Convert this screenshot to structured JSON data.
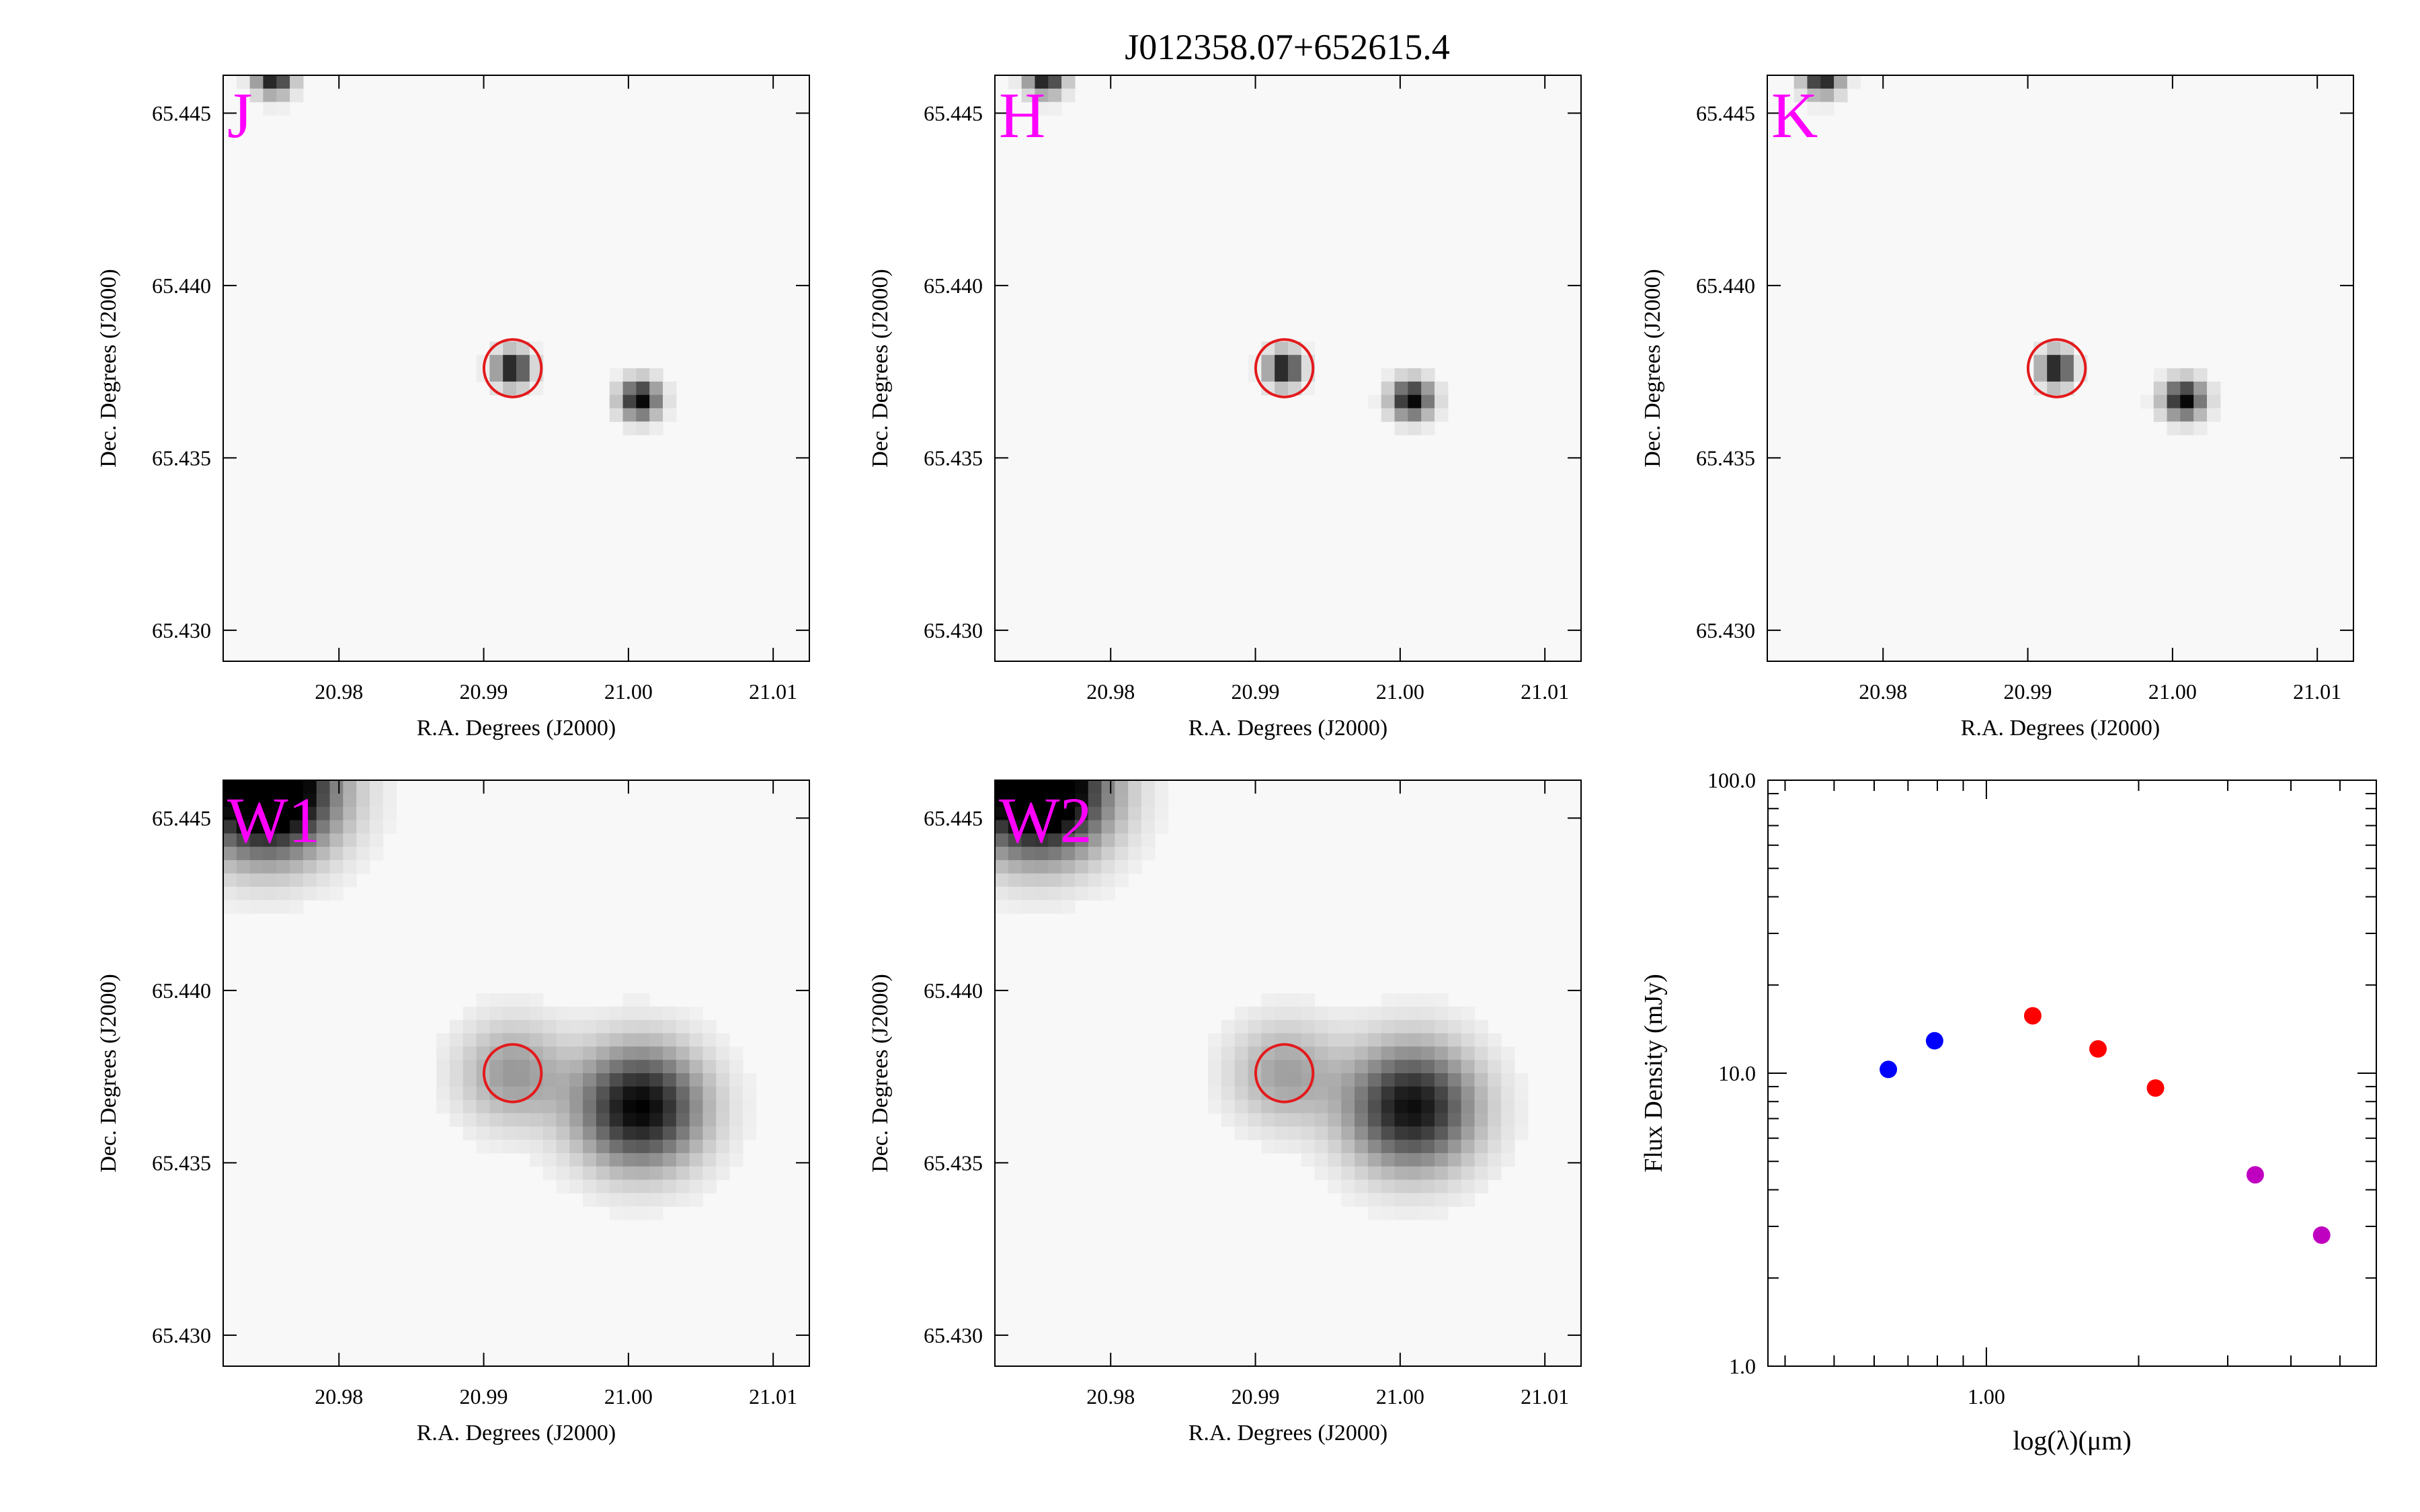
{
  "figure_title": "J012358.07+652615.4",
  "colors": {
    "band_label": "#ff00ff",
    "aperture": "#e31a1c",
    "optical": "#0000ff",
    "near_ir": "#ff0000",
    "mid_ir": "#c000c0"
  },
  "chart_data": [
    {
      "type": "heatmap",
      "band": "J",
      "xlabel": "R.A. Degrees (J2000)",
      "ylabel": "Dec. Degrees (J2000)",
      "xlim": [
        20.972,
        21.0125
      ],
      "ylim": [
        65.4291,
        65.4461
      ],
      "xticks": [
        20.98,
        20.99,
        21.0,
        21.01
      ],
      "xtick_labels": [
        "20.98",
        "20.99",
        "21.00",
        "21.01"
      ],
      "yticks": [
        65.43,
        65.435,
        65.44,
        65.445
      ],
      "ytick_labels": [
        "65.430",
        "65.435",
        "65.440",
        "65.445"
      ],
      "sources": [
        {
          "ra": 20.9755,
          "dec": 65.4461,
          "peak": 1.0,
          "fwhm_ra": 0.0021,
          "fwhm_dec": 0.0009
        },
        {
          "ra": 20.992,
          "dec": 65.4376,
          "peak": 1.0,
          "fwhm_ra": 0.002,
          "fwhm_dec": 0.0008
        },
        {
          "ra": 21.0008,
          "dec": 65.4367,
          "peak": 1.0,
          "fwhm_ra": 0.0022,
          "fwhm_dec": 0.0009
        }
      ],
      "aperture": {
        "ra": 20.992,
        "dec": 65.4376,
        "radius_arcsec": 3
      }
    },
    {
      "type": "heatmap",
      "band": "H",
      "xlabel": "R.A. Degrees (J2000)",
      "ylabel": "Dec. Degrees (J2000)",
      "xlim": [
        20.972,
        21.0125
      ],
      "ylim": [
        65.4291,
        65.4461
      ],
      "xticks": [
        20.98,
        20.99,
        21.0,
        21.01
      ],
      "xtick_labels": [
        "20.98",
        "20.99",
        "21.00",
        "21.01"
      ],
      "yticks": [
        65.43,
        65.435,
        65.44,
        65.445
      ],
      "ytick_labels": [
        "65.430",
        "65.435",
        "65.440",
        "65.445"
      ],
      "sources": [
        {
          "ra": 20.9755,
          "dec": 65.4461,
          "peak": 1.0,
          "fwhm_ra": 0.0021,
          "fwhm_dec": 0.0009
        },
        {
          "ra": 20.992,
          "dec": 65.4376,
          "peak": 1.0,
          "fwhm_ra": 0.0019,
          "fwhm_dec": 0.0008
        },
        {
          "ra": 21.0008,
          "dec": 65.4367,
          "peak": 1.0,
          "fwhm_ra": 0.0023,
          "fwhm_dec": 0.0009
        }
      ],
      "aperture": {
        "ra": 20.992,
        "dec": 65.4376,
        "radius_arcsec": 3
      }
    },
    {
      "type": "heatmap",
      "band": "K",
      "xlabel": "R.A. Degrees (J2000)",
      "ylabel": "Dec. Degrees (J2000)",
      "xlim": [
        20.972,
        21.0125
      ],
      "ylim": [
        65.4291,
        65.4461
      ],
      "xticks": [
        20.98,
        20.99,
        21.0,
        21.01
      ],
      "xtick_labels": [
        "20.98",
        "20.99",
        "21.00",
        "21.01"
      ],
      "yticks": [
        65.43,
        65.435,
        65.44,
        65.445
      ],
      "ytick_labels": [
        "65.430",
        "65.435",
        "65.440",
        "65.445"
      ],
      "sources": [
        {
          "ra": 20.9758,
          "dec": 65.4461,
          "peak": 1.0,
          "fwhm_ra": 0.0021,
          "fwhm_dec": 0.0009
        },
        {
          "ra": 20.992,
          "dec": 65.4376,
          "peak": 1.0,
          "fwhm_ra": 0.0018,
          "fwhm_dec": 0.0008
        },
        {
          "ra": 21.0008,
          "dec": 65.4367,
          "peak": 1.0,
          "fwhm_ra": 0.0023,
          "fwhm_dec": 0.0009
        }
      ],
      "aperture": {
        "ra": 20.992,
        "dec": 65.4376,
        "radius_arcsec": 3
      }
    },
    {
      "type": "heatmap",
      "band": "W1",
      "xlabel": "R.A. Degrees (J2000)",
      "ylabel": "Dec. Degrees (J2000)",
      "xlim": [
        20.972,
        21.0125
      ],
      "ylim": [
        65.4291,
        65.4461
      ],
      "xticks": [
        20.98,
        20.99,
        21.0,
        21.01
      ],
      "xtick_labels": [
        "20.98",
        "20.99",
        "21.00",
        "21.01"
      ],
      "yticks": [
        65.43,
        65.435,
        65.44,
        65.445
      ],
      "ytick_labels": [
        "65.430",
        "65.435",
        "65.440",
        "65.445"
      ],
      "sources": [
        {
          "ra": 20.975,
          "dec": 65.4458,
          "peak": 1.5,
          "fwhm_ra": 0.0075,
          "fwhm_dec": 0.003
        },
        {
          "ra": 20.992,
          "dec": 65.4376,
          "peak": 0.38,
          "fwhm_ra": 0.006,
          "fwhm_dec": 0.0024
        },
        {
          "ra": 21.0008,
          "dec": 65.4366,
          "peak": 1.0,
          "fwhm_ra": 0.007,
          "fwhm_dec": 0.0028
        }
      ],
      "aperture": {
        "ra": 20.992,
        "dec": 65.4376,
        "radius_arcsec": 3
      }
    },
    {
      "type": "heatmap",
      "band": "W2",
      "xlabel": "R.A. Degrees (J2000)",
      "ylabel": "Dec. Degrees (J2000)",
      "xlim": [
        20.972,
        21.0125
      ],
      "ylim": [
        65.4291,
        65.4461
      ],
      "xticks": [
        20.98,
        20.99,
        21.0,
        21.01
      ],
      "xtick_labels": [
        "20.98",
        "20.99",
        "21.00",
        "21.01"
      ],
      "yticks": [
        65.43,
        65.435,
        65.44,
        65.445
      ],
      "ytick_labels": [
        "65.430",
        "65.435",
        "65.440",
        "65.445"
      ],
      "sources": [
        {
          "ra": 20.975,
          "dec": 65.4458,
          "peak": 1.5,
          "fwhm_ra": 0.0075,
          "fwhm_dec": 0.003
        },
        {
          "ra": 20.992,
          "dec": 65.4376,
          "peak": 0.35,
          "fwhm_ra": 0.006,
          "fwhm_dec": 0.0024
        },
        {
          "ra": 21.0008,
          "dec": 65.4366,
          "peak": 0.95,
          "fwhm_ra": 0.0072,
          "fwhm_dec": 0.0029
        }
      ],
      "aperture": {
        "ra": 20.992,
        "dec": 65.4376,
        "radius_arcsec": 3
      }
    },
    {
      "type": "scatter",
      "xlabel": "log(λ)(μm)",
      "ylabel": "Flux Density (mJy)",
      "x_scale": "log",
      "y_scale": "log",
      "xlim": [
        0.37,
        5.9
      ],
      "ylim": [
        1.0,
        100.0
      ],
      "xticks": [
        1.0
      ],
      "xtick_labels": [
        "1.00"
      ],
      "yticks": [
        1.0,
        10.0,
        100.0
      ],
      "ytick_labels": [
        "1.0",
        "10.0",
        "100.0"
      ],
      "points": [
        {
          "x": 0.64,
          "y": 10.3,
          "color": "#0000ff"
        },
        {
          "x": 0.79,
          "y": 12.9,
          "color": "#0000ff"
        },
        {
          "x": 1.235,
          "y": 15.7,
          "color": "#ff0000"
        },
        {
          "x": 1.662,
          "y": 12.1,
          "color": "#ff0000"
        },
        {
          "x": 2.159,
          "y": 8.9,
          "color": "#ff0000"
        },
        {
          "x": 3.4,
          "y": 4.5,
          "color": "#c000c0"
        },
        {
          "x": 4.6,
          "y": 2.8,
          "color": "#c000c0"
        }
      ]
    }
  ]
}
